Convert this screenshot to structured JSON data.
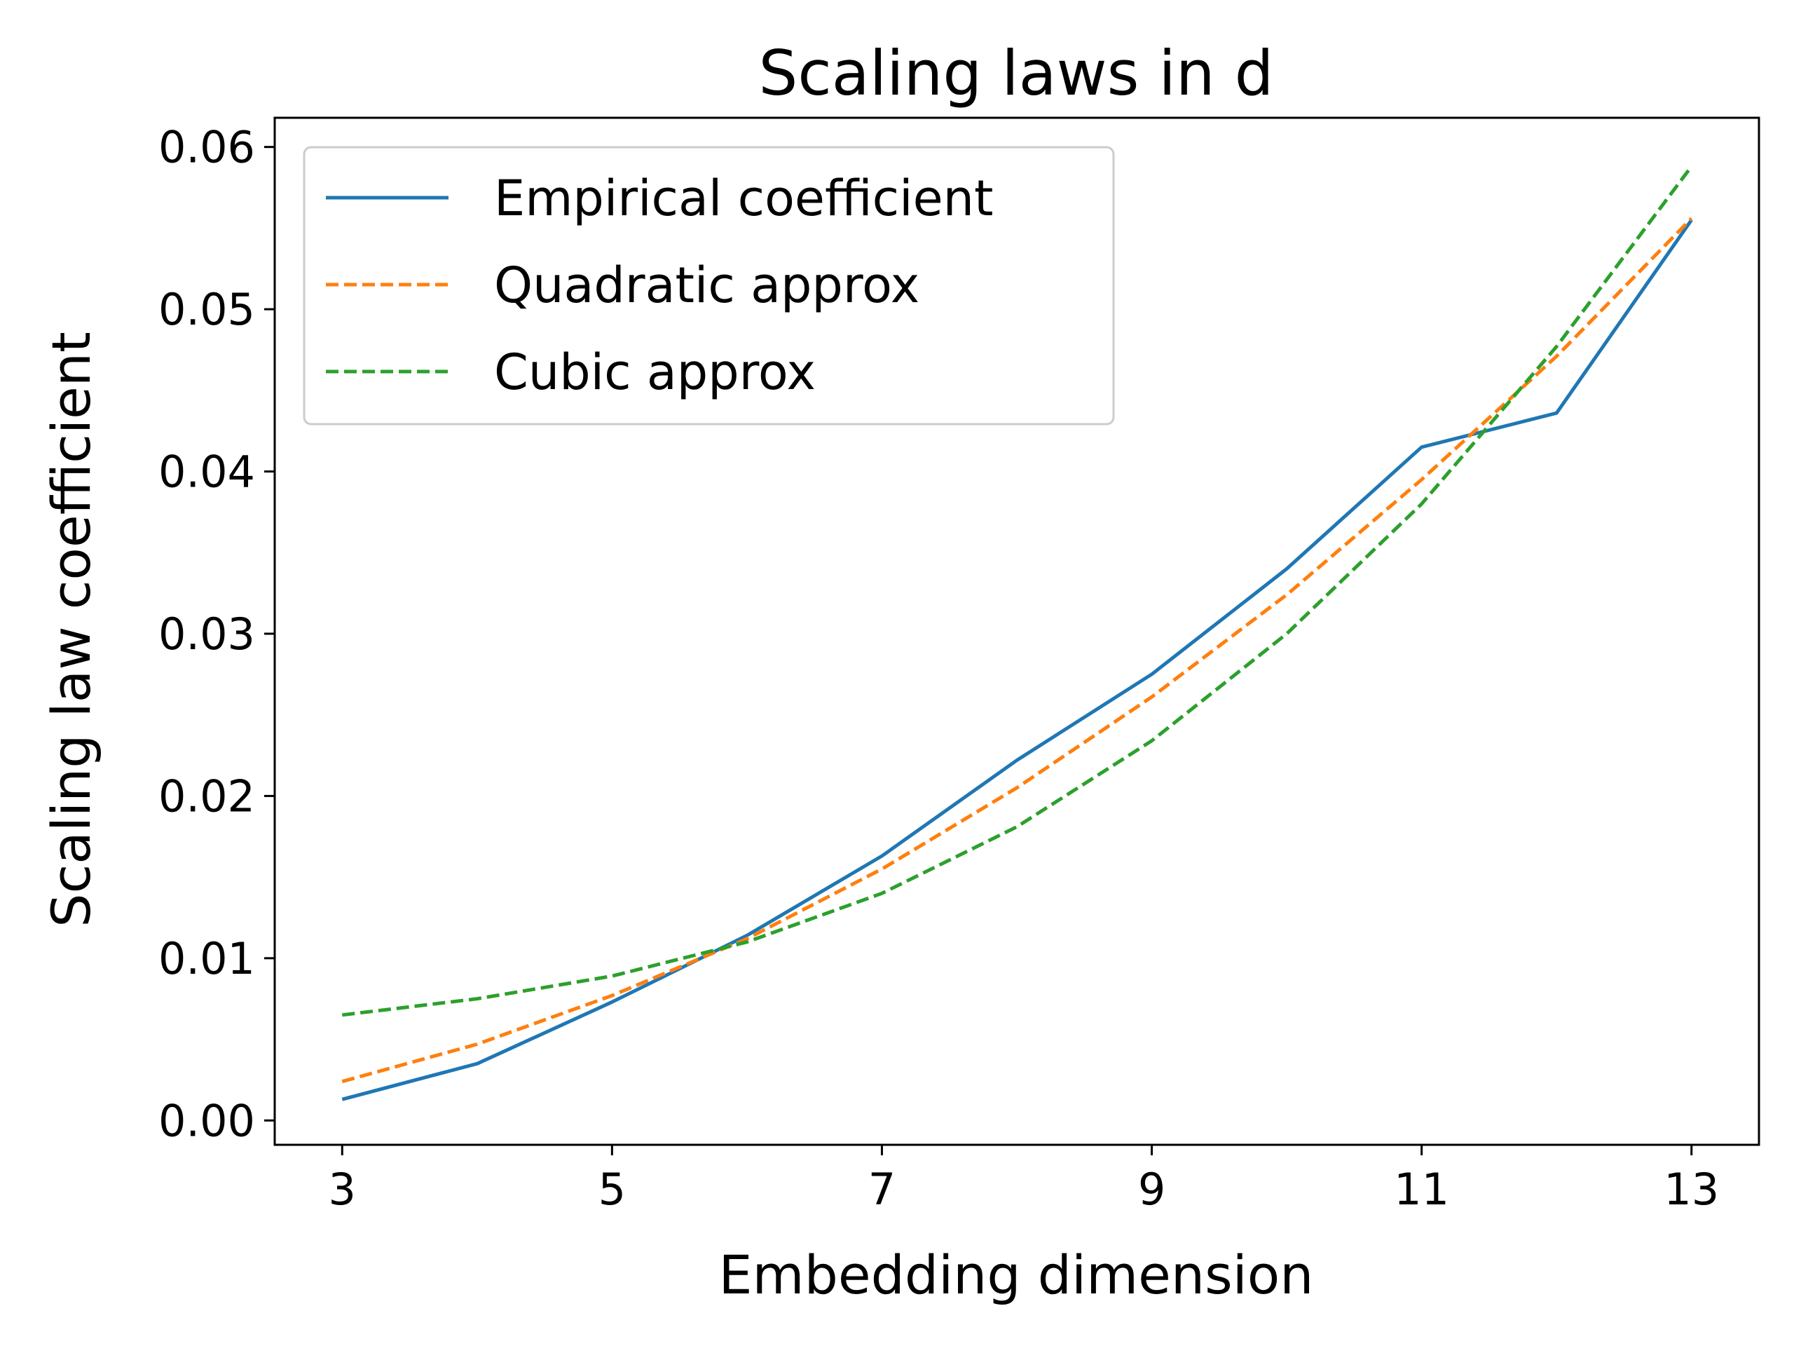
{
  "chart_data": {
    "type": "line",
    "title": "Scaling laws in d",
    "xlabel": "Embedding dimension",
    "ylabel": "Scaling law coefficient",
    "xlim": [
      2.5,
      13.5
    ],
    "ylim": [
      -0.0015,
      0.0618
    ],
    "xticks": [
      3,
      5,
      7,
      9,
      11,
      13
    ],
    "xtick_labels": [
      "3",
      "5",
      "7",
      "9",
      "11",
      "13"
    ],
    "yticks": [
      0.0,
      0.01,
      0.02,
      0.03,
      0.04,
      0.05,
      0.06
    ],
    "ytick_labels": [
      "0.00",
      "0.01",
      "0.02",
      "0.03",
      "0.04",
      "0.05",
      "0.06"
    ],
    "grid": false,
    "legend_position": "top-left",
    "x": [
      3,
      4,
      5,
      6,
      7,
      8,
      9,
      10,
      11,
      12,
      13
    ],
    "series": [
      {
        "name": "Empirical coefficient",
        "style": "solid",
        "color": "#1f77b4",
        "values": [
          0.0013,
          0.0035,
          0.0073,
          0.0114,
          0.0163,
          0.0222,
          0.0275,
          0.034,
          0.0415,
          0.0436,
          0.0555
        ]
      },
      {
        "name": "Quadratic approx",
        "style": "dashed",
        "color": "#ff7f0e",
        "values": [
          0.0024,
          0.0047,
          0.0077,
          0.0112,
          0.0155,
          0.0205,
          0.0261,
          0.0324,
          0.0395,
          0.0471,
          0.0556
        ]
      },
      {
        "name": "Cubic approx",
        "style": "dashed",
        "color": "#2ca02c",
        "values": [
          0.0065,
          0.0075,
          0.0089,
          0.011,
          0.014,
          0.0181,
          0.0234,
          0.03,
          0.038,
          0.0477,
          0.0588
        ]
      }
    ]
  }
}
